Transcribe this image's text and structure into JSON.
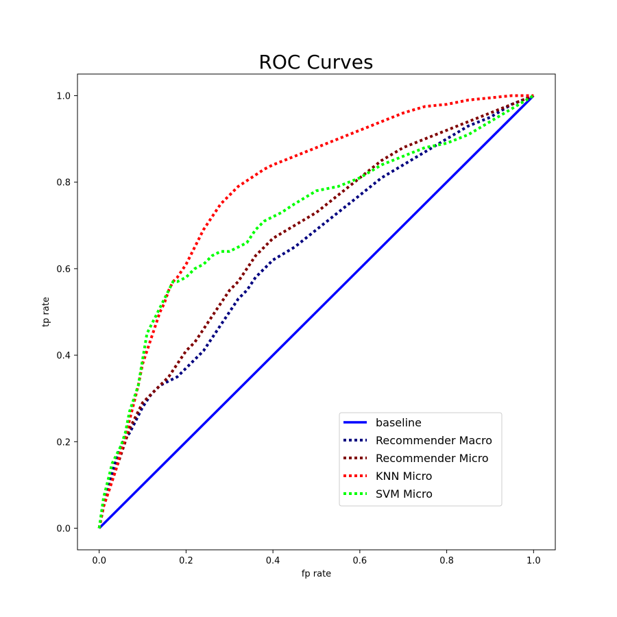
{
  "chart_data": {
    "type": "line",
    "title": "ROC Curves",
    "xlabel": "fp rate",
    "ylabel": "tp rate",
    "xlim": [
      -0.05,
      1.05
    ],
    "ylim": [
      -0.05,
      1.05
    ],
    "xticks": [
      "0.0",
      "0.2",
      "0.4",
      "0.6",
      "0.8",
      "1.0"
    ],
    "yticks": [
      "0.0",
      "0.2",
      "0.4",
      "0.6",
      "0.8",
      "1.0"
    ],
    "grid": false,
    "legend_position": "lower-right",
    "series": [
      {
        "name": "baseline",
        "color": "#0000ff",
        "style": "solid",
        "x": [
          0,
          1
        ],
        "y": [
          0,
          1
        ]
      },
      {
        "name": "Recommender Macro",
        "color": "#00007f",
        "style": "dotted",
        "x": [
          0,
          0.01,
          0.02,
          0.03,
          0.04,
          0.05,
          0.06,
          0.07,
          0.08,
          0.09,
          0.1,
          0.12,
          0.14,
          0.16,
          0.18,
          0.2,
          0.22,
          0.24,
          0.26,
          0.28,
          0.3,
          0.32,
          0.34,
          0.36,
          0.38,
          0.4,
          0.45,
          0.5,
          0.55,
          0.6,
          0.65,
          0.7,
          0.75,
          0.8,
          0.85,
          0.9,
          0.95,
          1.0
        ],
        "y": [
          0,
          0.05,
          0.09,
          0.13,
          0.16,
          0.19,
          0.21,
          0.22,
          0.24,
          0.26,
          0.28,
          0.31,
          0.33,
          0.34,
          0.35,
          0.37,
          0.39,
          0.41,
          0.44,
          0.47,
          0.5,
          0.53,
          0.55,
          0.58,
          0.6,
          0.62,
          0.65,
          0.69,
          0.73,
          0.77,
          0.81,
          0.84,
          0.87,
          0.9,
          0.93,
          0.95,
          0.98,
          1.0
        ]
      },
      {
        "name": "Recommender Micro",
        "color": "#7f0000",
        "style": "dotted",
        "x": [
          0,
          0.01,
          0.02,
          0.03,
          0.04,
          0.05,
          0.06,
          0.07,
          0.08,
          0.09,
          0.1,
          0.12,
          0.14,
          0.16,
          0.18,
          0.2,
          0.22,
          0.24,
          0.26,
          0.28,
          0.3,
          0.32,
          0.34,
          0.36,
          0.38,
          0.4,
          0.45,
          0.5,
          0.55,
          0.6,
          0.65,
          0.7,
          0.75,
          0.8,
          0.85,
          0.9,
          0.95,
          1.0
        ],
        "y": [
          0,
          0.05,
          0.08,
          0.11,
          0.14,
          0.17,
          0.2,
          0.23,
          0.25,
          0.27,
          0.29,
          0.31,
          0.33,
          0.35,
          0.38,
          0.41,
          0.43,
          0.46,
          0.49,
          0.52,
          0.55,
          0.57,
          0.6,
          0.63,
          0.65,
          0.67,
          0.7,
          0.73,
          0.77,
          0.81,
          0.85,
          0.88,
          0.9,
          0.92,
          0.94,
          0.96,
          0.98,
          1.0
        ]
      },
      {
        "name": "KNN Micro",
        "color": "#ff0000",
        "style": "dotted",
        "x": [
          0,
          0.01,
          0.02,
          0.03,
          0.04,
          0.05,
          0.06,
          0.07,
          0.08,
          0.09,
          0.1,
          0.11,
          0.12,
          0.13,
          0.14,
          0.15,
          0.16,
          0.17,
          0.18,
          0.2,
          0.22,
          0.24,
          0.26,
          0.28,
          0.3,
          0.32,
          0.35,
          0.38,
          0.4,
          0.45,
          0.5,
          0.55,
          0.6,
          0.65,
          0.7,
          0.75,
          0.8,
          0.85,
          0.9,
          0.95,
          1.0
        ],
        "y": [
          0,
          0.05,
          0.08,
          0.11,
          0.14,
          0.18,
          0.21,
          0.25,
          0.29,
          0.33,
          0.38,
          0.41,
          0.44,
          0.47,
          0.5,
          0.52,
          0.55,
          0.57,
          0.58,
          0.61,
          0.65,
          0.69,
          0.72,
          0.75,
          0.77,
          0.79,
          0.81,
          0.83,
          0.84,
          0.86,
          0.88,
          0.9,
          0.92,
          0.94,
          0.96,
          0.975,
          0.98,
          0.99,
          0.995,
          1.0,
          1.0
        ]
      },
      {
        "name": "SVM Micro",
        "color": "#00ff00",
        "style": "dotted",
        "x": [
          0,
          0.01,
          0.02,
          0.03,
          0.04,
          0.05,
          0.06,
          0.07,
          0.08,
          0.09,
          0.1,
          0.11,
          0.12,
          0.13,
          0.14,
          0.15,
          0.16,
          0.17,
          0.18,
          0.2,
          0.22,
          0.24,
          0.26,
          0.28,
          0.3,
          0.32,
          0.34,
          0.36,
          0.38,
          0.4,
          0.42,
          0.45,
          0.5,
          0.55,
          0.6,
          0.65,
          0.7,
          0.75,
          0.8,
          0.85,
          0.9,
          0.95,
          1.0
        ],
        "y": [
          0,
          0.07,
          0.11,
          0.15,
          0.17,
          0.19,
          0.22,
          0.27,
          0.3,
          0.33,
          0.39,
          0.45,
          0.47,
          0.49,
          0.51,
          0.53,
          0.55,
          0.57,
          0.57,
          0.58,
          0.6,
          0.61,
          0.63,
          0.64,
          0.64,
          0.65,
          0.66,
          0.69,
          0.71,
          0.72,
          0.73,
          0.75,
          0.78,
          0.79,
          0.81,
          0.84,
          0.86,
          0.88,
          0.89,
          0.91,
          0.94,
          0.97,
          1.0
        ]
      }
    ]
  }
}
